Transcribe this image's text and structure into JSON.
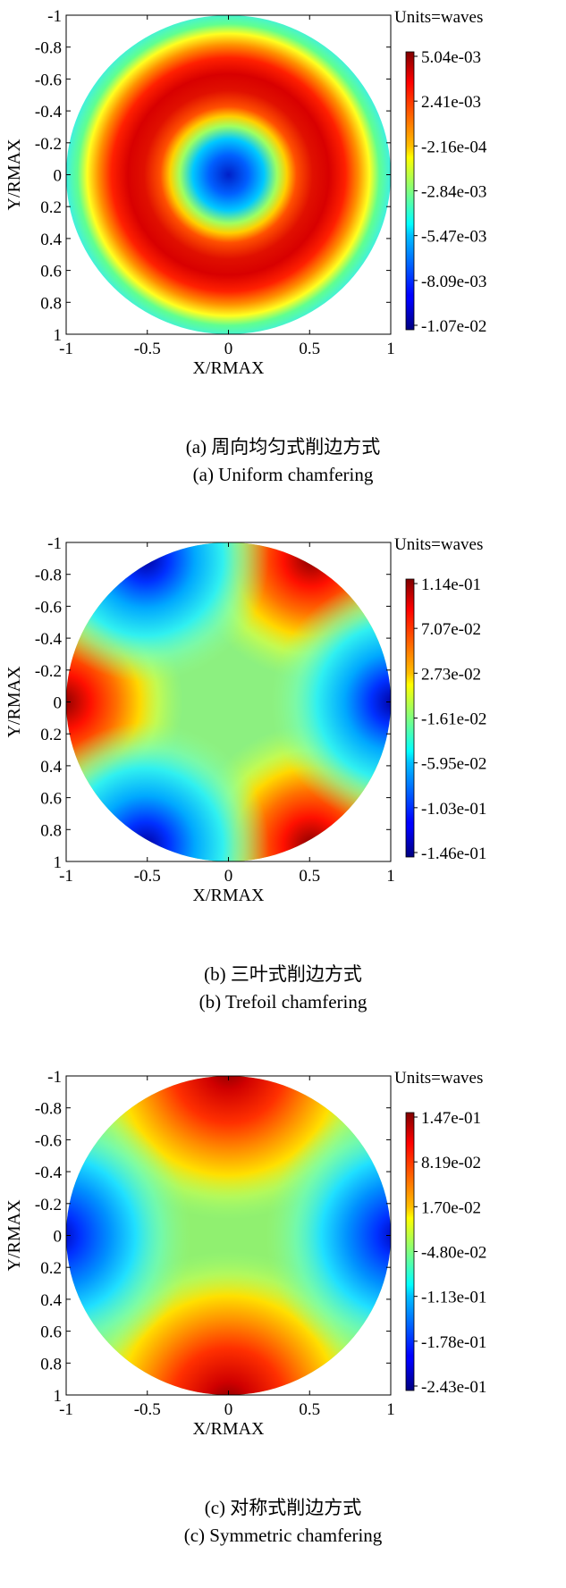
{
  "chart_data": [
    {
      "type": "heatmap",
      "title": "",
      "xlabel": "X/RMAX",
      "ylabel": "Y/RMAX",
      "xlim": [
        -1,
        1
      ],
      "ylim": [
        -1,
        1
      ],
      "y_axis_inverted": true,
      "xticks": [
        "-1",
        "-0.5",
        "0",
        "0.5",
        "1"
      ],
      "yticks": [
        "-1",
        "-0.8",
        "-0.6",
        "-0.4",
        "-0.2",
        "0",
        "0.2",
        "0.4",
        "0.6",
        "0.8",
        "1"
      ],
      "colorbar_title": "Units=waves",
      "colorbar_ticks": [
        "5.04e-03",
        "2.41e-03",
        "-2.16e-04",
        "-2.84e-03",
        "-5.47e-03",
        "-8.09e-03",
        "-1.07e-02"
      ],
      "colorbar_range": [
        -0.0107,
        0.00504
      ],
      "colormap": "jet",
      "pattern": "radially symmetric ring: minimum at center, maximum near r≈0.6, near-mid value at edge",
      "caption_cn": "(a) 周向均匀式削边方式",
      "caption_en": "(a) Uniform chamfering"
    },
    {
      "type": "heatmap",
      "title": "",
      "xlabel": "X/RMAX",
      "ylabel": "Y/RMAX",
      "xlim": [
        -1,
        1
      ],
      "ylim": [
        -1,
        1
      ],
      "y_axis_inverted": true,
      "xticks": [
        "-1",
        "-0.5",
        "0",
        "0.5",
        "1"
      ],
      "yticks": [
        "-1",
        "-0.8",
        "-0.6",
        "-0.4",
        "-0.2",
        "0",
        "0.2",
        "0.4",
        "0.6",
        "0.8",
        "1"
      ],
      "colorbar_title": "Units=waves",
      "colorbar_ticks": [
        "1.14e-01",
        "7.07e-02",
        "2.73e-02",
        "-1.61e-02",
        "-5.95e-02",
        "-1.03e-01",
        "-1.46e-01"
      ],
      "colorbar_range": [
        -0.146,
        0.114
      ],
      "colormap": "jet",
      "pattern": "trefoil (3-theta) surface: maxima at left edge and upper/lower right, minima at right edge and upper/lower left",
      "caption_cn": "(b) 三叶式削边方式",
      "caption_en": "(b) Trefoil chamfering"
    },
    {
      "type": "heatmap",
      "title": "",
      "xlabel": "X/RMAX",
      "ylabel": "Y/RMAX",
      "xlim": [
        -1,
        1
      ],
      "ylim": [
        -1,
        1
      ],
      "y_axis_inverted": true,
      "xticks": [
        "-1",
        "-0.5",
        "0",
        "0.5",
        "1"
      ],
      "yticks": [
        "-1",
        "-0.8",
        "-0.6",
        "-0.4",
        "-0.2",
        "0",
        "0.2",
        "0.4",
        "0.6",
        "0.8",
        "1"
      ],
      "colorbar_title": "Units=waves",
      "colorbar_ticks": [
        "1.47e-01",
        "8.19e-02",
        "1.70e-02",
        "-4.80e-02",
        "-1.13e-01",
        "-1.78e-01",
        "-2.43e-01"
      ],
      "colorbar_range": [
        -0.243,
        0.147
      ],
      "colormap": "jet",
      "pattern": "astigmatism-like saddle (2-theta): maxima at top and bottom edges, minima at left and right edges",
      "caption_cn": "(c) 对称式削边方式",
      "caption_en": "(c) Symmetric chamfering"
    }
  ]
}
